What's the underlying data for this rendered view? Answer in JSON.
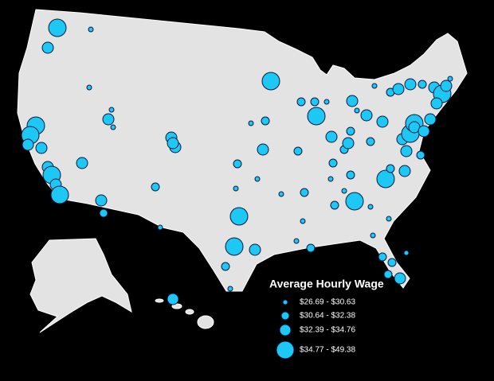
{
  "legend": {
    "title": "Average Hourly Wage",
    "items": [
      "$26.69 - $30.63",
      "$30.64 - $32.38",
      "$32.39 - $34.76",
      "$34.77 - $49.38"
    ]
  }
}
